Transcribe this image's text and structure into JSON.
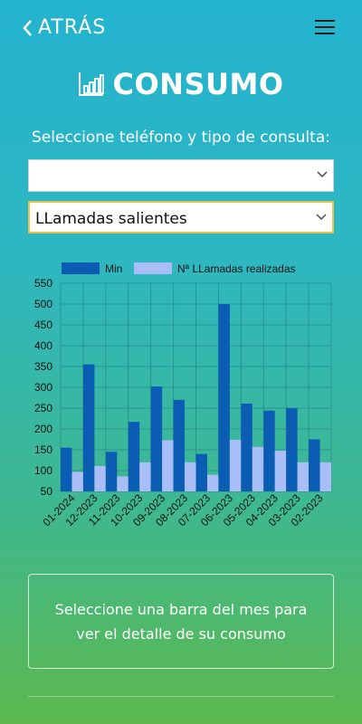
{
  "header": {
    "back_label": "ATRÁS",
    "back_icon": "chevron-left-icon",
    "menu_icon": "hamburger-menu-icon"
  },
  "page": {
    "title": "CONSUMO",
    "title_icon": "bar-chart-icon",
    "subtitle": "Seleccione teléfono y tipo de consulta:"
  },
  "selects": {
    "phone_value": "",
    "type_value": "LLamadas salientes"
  },
  "colors": {
    "series_min": "#0b5cb3",
    "series_calls": "#a9bdf6",
    "select_focus_border": "#e8c24a"
  },
  "chart_data": {
    "type": "bar",
    "categories": [
      "01-2024",
      "12-2023",
      "11-2023",
      "10-2023",
      "09-2023",
      "08-2023",
      "07-2023",
      "06-2023",
      "05-2023",
      "04-2023",
      "03-2023",
      "02-2023"
    ],
    "series": [
      {
        "name": "Min",
        "values": [
          155,
          355,
          145,
          217,
          302,
          270,
          140,
          500,
          261,
          244,
          250,
          175
        ]
      },
      {
        "name": "Nª LLamadas realizadas",
        "values": [
          97,
          111,
          86,
          120,
          173,
          120,
          90,
          174,
          157,
          148,
          120,
          120
        ]
      }
    ],
    "ylim": [
      50,
      550
    ],
    "yticks": [
      50,
      100,
      150,
      200,
      250,
      300,
      350,
      400,
      450,
      500,
      550
    ],
    "legend": "top",
    "grid": true
  },
  "info": {
    "text": "Seleccione una barra del mes para ver el detalle de su consumo"
  }
}
